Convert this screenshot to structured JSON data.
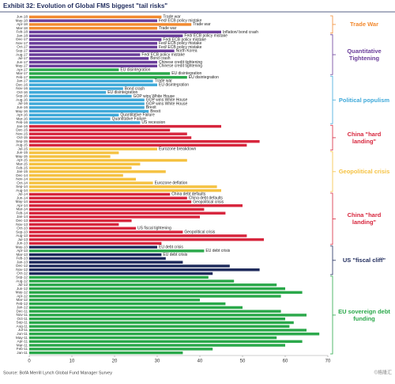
{
  "chart_data": {
    "type": "bar",
    "orientation": "horizontal",
    "title": "Exhibit 32: Evolution of Global FMS biggest \"tail risks\"",
    "source": "Source: BofA Merrill Lynch Global Fund Manager Survey",
    "watermark": "©格隆汇",
    "categories": [
      "Jun-18",
      "May-18",
      "Apr-18",
      "Mar-18",
      "Feb-18",
      "Jan-18",
      "Dec-17",
      "Nov-17",
      "Oct-17",
      "Sep-17",
      "Aug-17",
      "Jul-17",
      "Jun-17",
      "May-17",
      "Apr-17",
      "Mar-17",
      "Feb-17",
      "Jan-17",
      "Dec-16",
      "Nov-16",
      "Oct-16",
      "Sep-16",
      "Aug-16",
      "Jul-16",
      "Jun-16",
      "May-16",
      "Apr-16",
      "Mar-16",
      "Feb-16",
      "Jan-16",
      "Dec-15",
      "Nov-15",
      "Oct-15",
      "Sep-15",
      "Aug-15",
      "Jul-15",
      "Jun-15",
      "May-15",
      "Apr-15",
      "Mar-15",
      "Feb-15",
      "Jan-15",
      "Dec-14",
      "Nov-14",
      "Oct-14",
      "Sep-14",
      "Aug-14",
      "Jul-14",
      "Jun-14",
      "May-14",
      "Apr-14",
      "Mar-14",
      "Feb-14",
      "Jan-14",
      "Dec-13",
      "Nov-13",
      "Oct-13",
      "Sep-13",
      "Aug-13",
      "Jul-13",
      "Jun-13",
      "May-13",
      "Apr-13",
      "Mar-13",
      "Feb-13",
      "Jan-13",
      "Dec-12",
      "Nov-12",
      "Oct-12",
      "Sep-12",
      "Aug-12",
      "Jul-12",
      "Jun-12",
      "May-12",
      "Apr-12",
      "Mar-12",
      "Feb-12",
      "Jan-12",
      "Dec-11",
      "Nov-11",
      "Oct-11",
      "Sep-11",
      "Aug-11",
      "Jul-11",
      "Jun-11",
      "May-11",
      "Apr-11",
      "Mar-11",
      "Feb-11",
      "Jan-11"
    ],
    "values": [
      31,
      30,
      38,
      30,
      45,
      36,
      31,
      30,
      30,
      34,
      26,
      28,
      30,
      30,
      21,
      33,
      37,
      29,
      30,
      22,
      18,
      24,
      27,
      27,
      27,
      28,
      21,
      19,
      26,
      45,
      33,
      37,
      38,
      54,
      51,
      30,
      21,
      19,
      37,
      26,
      24,
      32,
      22,
      25,
      29,
      44,
      45,
      33,
      37,
      38,
      50,
      41,
      46,
      40,
      24,
      21,
      25,
      36,
      51,
      55,
      31,
      30,
      41,
      31,
      32,
      36,
      47,
      54,
      43,
      42,
      48,
      58,
      60,
      64,
      59,
      40,
      46,
      50,
      59,
      65,
      60,
      62,
      61,
      65,
      68,
      58,
      64,
      60,
      43,
      36
    ],
    "colors": [
      "#f28a30",
      "#6a3d9a",
      "#f28a30",
      "#f28a30",
      "#6a3d9a",
      "#6a3d9a",
      "#6a3d9a",
      "#6a3d9a",
      "#6a3d9a",
      "#6a3d9a",
      "#6a3d9a",
      "#6a3d9a",
      "#6a3d9a",
      "#6a3d9a",
      "#2aa84a",
      "#2aa84a",
      "#2aa84a",
      "#3fa9d9",
      "#3fa9d9",
      "#3fa9d9",
      "#3fa9d9",
      "#3fa9d9",
      "#3fa9d9",
      "#3fa9d9",
      "#3fa9d9",
      "#3fa9d9",
      "#3fa9d9",
      "#3fa9d9",
      "#3fa9d9",
      "#d7263d",
      "#d7263d",
      "#d7263d",
      "#d7263d",
      "#d7263d",
      "#d7263d",
      "#f5c242",
      "#f5c242",
      "#f5c242",
      "#f5c242",
      "#f5c242",
      "#f5c242",
      "#f5c242",
      "#f5c242",
      "#f5c242",
      "#f5c242",
      "#f5c242",
      "#f5c242",
      "#d7263d",
      "#d7263d",
      "#d7263d",
      "#d7263d",
      "#d7263d",
      "#d7263d",
      "#d7263d",
      "#d7263d",
      "#d7263d",
      "#d7263d",
      "#d7263d",
      "#d7263d",
      "#d7263d",
      "#d7263d",
      "#1f2b5c",
      "#2aa84a",
      "#1f2b5c",
      "#1f2b5c",
      "#1f2b5c",
      "#1f2b5c",
      "#1f2b5c",
      "#1f2b5c",
      "#2aa84a",
      "#2aa84a",
      "#2aa84a",
      "#2aa84a",
      "#2aa84a",
      "#2aa84a",
      "#2aa84a",
      "#2aa84a",
      "#2aa84a",
      "#2aa84a",
      "#2aa84a",
      "#2aa84a",
      "#2aa84a",
      "#2aa84a",
      "#2aa84a",
      "#2aa84a",
      "#2aa84a",
      "#2aa84a",
      "#2aa84a",
      "#2aa84a",
      "#2aa84a"
    ],
    "bar_labels": [
      "Trade war",
      "Fed/ ECB policy mistake",
      "Trade war",
      "Trade war",
      "Inflation/ bond crash",
      "Fed/ ECB policy mistake",
      "Fed/ ECB policy mistake",
      "Fed/ ECB policy mistake",
      "Fed/ ECB policy mistake",
      "North Korea",
      "Fed/ ECB policy mistake",
      "Bond crash",
      "Chinese credit tightening",
      "Chinese credit tightening",
      "EU disintegration",
      "EU disintegration",
      "EU disintegration",
      "Trade war",
      "EU disintegration",
      "Bond crash",
      "EU disintegration",
      "GOP wins White House",
      "GOP wins White House",
      "GOP wins White House",
      "Brexit",
      "Brexit",
      "Quantitative Failure",
      "Quantitative Failure",
      "US recession",
      null,
      null,
      null,
      null,
      null,
      null,
      "Eurozone breakdown",
      null,
      null,
      null,
      null,
      null,
      null,
      null,
      null,
      "Eurozone deflation",
      null,
      null,
      "China debt defaults",
      "China debt defaults",
      "Geopolitical crisis",
      null,
      null,
      null,
      null,
      null,
      null,
      "US fiscal tightening",
      "Geopolitical crisis",
      null,
      null,
      null,
      "EU debt crisis",
      "EU debt crisis",
      "EU debt crisis",
      null,
      null,
      null,
      null,
      null,
      null,
      null,
      null,
      null,
      null,
      null,
      null,
      null,
      null,
      null,
      null,
      null,
      null,
      null,
      null,
      null,
      null,
      null,
      null,
      null,
      null
    ],
    "xlim": [
      0,
      70
    ],
    "xticks": [
      0,
      10,
      20,
      30,
      40,
      50,
      60,
      70
    ],
    "groups": [
      {
        "label": "Trade War",
        "color": "#f28a30",
        "from": "Jun-18",
        "to": "Feb-18"
      },
      {
        "label": "Quantitative Tightening",
        "color": "#6a3d9a",
        "from": "Jan-18",
        "to": "Mar-17"
      },
      {
        "label": "Political populism",
        "color": "#3fa9d9",
        "from": "Feb-17",
        "to": "Feb-16"
      },
      {
        "label": "China \"hard landing\"",
        "color": "#d7263d",
        "from": "Jan-16",
        "to": "Jul-15"
      },
      {
        "label": "Geopolitical crisis",
        "color": "#f5c242",
        "from": "Jun-15",
        "to": "Aug-14"
      },
      {
        "label": "China \"hard landing\"",
        "color": "#d7263d",
        "from": "Jul-14",
        "to": "Jun-13"
      },
      {
        "label": "US \"fiscal cliff\"",
        "color": "#1f2b5c",
        "from": "May-13",
        "to": "Oct-12"
      },
      {
        "label": "EU sovereign debt funding",
        "color": "#2aa84a",
        "from": "Sep-12",
        "to": "Jan-11"
      }
    ]
  }
}
